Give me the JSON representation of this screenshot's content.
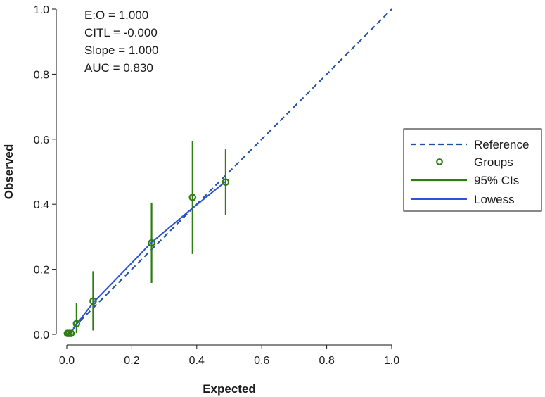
{
  "chart_data": {
    "type": "scatter",
    "xlabel": "Expected",
    "ylabel": "Observed",
    "xlim": [
      0,
      1
    ],
    "ylim": [
      0,
      1
    ],
    "xticks": [
      "0.0",
      "0.2",
      "0.4",
      "0.6",
      "0.8",
      "1.0"
    ],
    "yticks": [
      "0.0",
      "0.2",
      "0.4",
      "0.6",
      "0.8",
      "1.0"
    ],
    "grid": false,
    "legend_position": "right",
    "annotations": [
      "E:O = 1.000",
      "CITL = -0.000",
      "Slope = 1.000",
      "AUC = 0.830"
    ],
    "legend": [
      "Reference",
      "Groups",
      "95% CIs",
      "Lowess"
    ],
    "colors": {
      "reference": "#1f4e9c",
      "groups": "#2e7d12",
      "ci": "#2e7d12",
      "lowess": "#2b52d8"
    },
    "reference": {
      "x": [
        0,
        1
      ],
      "y": [
        0,
        1
      ]
    },
    "groups": {
      "x": [
        0.002,
        0.007,
        0.013,
        0.03,
        0.081,
        0.261,
        0.387,
        0.489
      ],
      "y": [
        0.003,
        0.003,
        0.003,
        0.033,
        0.102,
        0.281,
        0.421,
        0.468
      ],
      "ci_low": [
        0.003,
        0.003,
        0.003,
        0.004,
        0.012,
        0.158,
        0.247,
        0.367
      ],
      "ci_high": [
        0.003,
        0.003,
        0.003,
        0.096,
        0.194,
        0.405,
        0.594,
        0.569
      ]
    },
    "lowess": {
      "x": [
        0.002,
        0.013,
        0.03,
        0.081,
        0.261,
        0.387,
        0.489
      ],
      "y": [
        0.002,
        0.006,
        0.031,
        0.097,
        0.283,
        0.388,
        0.47
      ]
    }
  }
}
